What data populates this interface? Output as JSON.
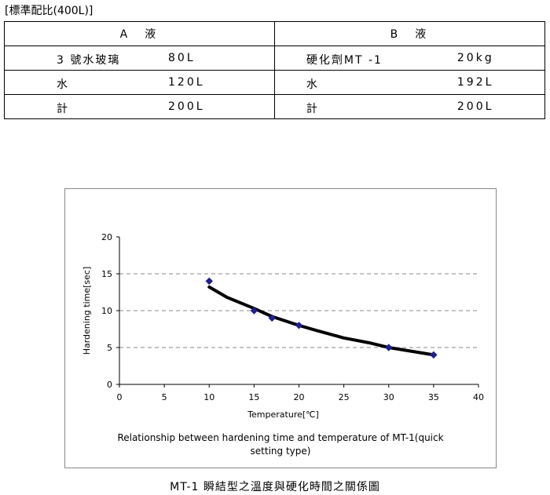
{
  "heading": "[標準配比(400L)]",
  "table": {
    "headers": [
      "A　液",
      "B　液"
    ],
    "rows": [
      {
        "a_name": "3 號水玻璃",
        "a_value": "80L",
        "b_name": "硬化劑MT -1",
        "b_value": "20kg"
      },
      {
        "a_name": "水",
        "a_value": "120L",
        "b_name": "水",
        "b_value": "192L"
      },
      {
        "a_name": "計",
        "a_value": "200L",
        "b_name": "計",
        "b_value": "200L"
      }
    ]
  },
  "chart_data": {
    "type": "scatter",
    "title": "",
    "xlabel": "Temperature[℃]",
    "ylabel": "Hardening time[sec]",
    "xlim": [
      0,
      40
    ],
    "ylim": [
      0,
      20
    ],
    "xticks": [
      0,
      5,
      10,
      15,
      20,
      25,
      30,
      35,
      40
    ],
    "yticks": [
      0,
      5,
      10,
      15,
      20
    ],
    "grid": "horizontal dashed",
    "series": [
      {
        "x": [
          10,
          15,
          17,
          20,
          30,
          35
        ],
        "y": [
          14,
          10,
          9,
          8,
          5,
          4
        ],
        "color": "#1f1f8f"
      }
    ],
    "trendline": {
      "x": [
        10,
        12,
        15,
        17,
        20,
        22,
        25,
        28,
        30,
        33,
        35
      ],
      "y": [
        13.2,
        11.8,
        10.3,
        9.2,
        8.0,
        7.3,
        6.3,
        5.6,
        5.0,
        4.4,
        4.0
      ],
      "color": "#000000"
    },
    "description_lines": [
      "Relationship between hardening time and temperature of MT-1(quick",
      "setting type)"
    ]
  },
  "caption": "MT-1 瞬結型之溫度與硬化時間之關係圖"
}
